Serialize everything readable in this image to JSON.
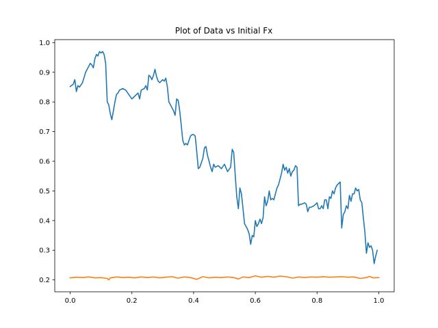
{
  "chart_data": {
    "type": "line",
    "title": "Plot of Data vs Initial Fx",
    "xlabel": "",
    "ylabel": "",
    "xlim": [
      -0.05,
      1.05
    ],
    "ylim": [
      0.16,
      1.01
    ],
    "xticks": [
      0.0,
      0.2,
      0.4,
      0.6,
      0.8,
      1.0
    ],
    "xtick_labels": [
      "0.0",
      "0.2",
      "0.4",
      "0.6",
      "0.8",
      "1.0"
    ],
    "yticks": [
      0.2,
      0.3,
      0.4,
      0.5,
      0.6,
      0.7,
      0.8,
      0.9,
      1.0
    ],
    "ytick_labels": [
      "0.2",
      "0.3",
      "0.4",
      "0.5",
      "0.6",
      "0.7",
      "0.8",
      "0.9",
      "1.0"
    ],
    "grid": false,
    "legend": "none",
    "series": [
      {
        "color": "#1f77b4",
        "points": [
          [
            0.0,
            0.852
          ],
          [
            0.01,
            0.86
          ],
          [
            0.015,
            0.875
          ],
          [
            0.02,
            0.835
          ],
          [
            0.025,
            0.855
          ],
          [
            0.03,
            0.85
          ],
          [
            0.04,
            0.865
          ],
          [
            0.05,
            0.9
          ],
          [
            0.06,
            0.92
          ],
          [
            0.065,
            0.93
          ],
          [
            0.07,
            0.925
          ],
          [
            0.075,
            0.915
          ],
          [
            0.08,
            0.945
          ],
          [
            0.085,
            0.96
          ],
          [
            0.09,
            0.955
          ],
          [
            0.095,
            0.97
          ],
          [
            0.1,
            0.965
          ],
          [
            0.105,
            0.97
          ],
          [
            0.11,
            0.96
          ],
          [
            0.115,
            0.93
          ],
          [
            0.12,
            0.8
          ],
          [
            0.125,
            0.79
          ],
          [
            0.13,
            0.76
          ],
          [
            0.135,
            0.74
          ],
          [
            0.14,
            0.77
          ],
          [
            0.145,
            0.8
          ],
          [
            0.15,
            0.825
          ],
          [
            0.155,
            0.83
          ],
          [
            0.16,
            0.84
          ],
          [
            0.17,
            0.845
          ],
          [
            0.18,
            0.84
          ],
          [
            0.19,
            0.825
          ],
          [
            0.2,
            0.81
          ],
          [
            0.21,
            0.82
          ],
          [
            0.22,
            0.83
          ],
          [
            0.225,
            0.81
          ],
          [
            0.23,
            0.84
          ],
          [
            0.24,
            0.845
          ],
          [
            0.245,
            0.855
          ],
          [
            0.25,
            0.84
          ],
          [
            0.255,
            0.89
          ],
          [
            0.26,
            0.885
          ],
          [
            0.265,
            0.875
          ],
          [
            0.27,
            0.89
          ],
          [
            0.275,
            0.91
          ],
          [
            0.28,
            0.885
          ],
          [
            0.285,
            0.87
          ],
          [
            0.29,
            0.865
          ],
          [
            0.3,
            0.875
          ],
          [
            0.305,
            0.87
          ],
          [
            0.31,
            0.88
          ],
          [
            0.315,
            0.85
          ],
          [
            0.32,
            0.8
          ],
          [
            0.325,
            0.79
          ],
          [
            0.33,
            0.78
          ],
          [
            0.335,
            0.77
          ],
          [
            0.34,
            0.755
          ],
          [
            0.345,
            0.81
          ],
          [
            0.35,
            0.805
          ],
          [
            0.355,
            0.77
          ],
          [
            0.36,
            0.72
          ],
          [
            0.365,
            0.67
          ],
          [
            0.37,
            0.655
          ],
          [
            0.375,
            0.66
          ],
          [
            0.38,
            0.655
          ],
          [
            0.385,
            0.67
          ],
          [
            0.39,
            0.685
          ],
          [
            0.395,
            0.69
          ],
          [
            0.4,
            0.69
          ],
          [
            0.405,
            0.685
          ],
          [
            0.41,
            0.635
          ],
          [
            0.415,
            0.575
          ],
          [
            0.42,
            0.58
          ],
          [
            0.425,
            0.595
          ],
          [
            0.43,
            0.61
          ],
          [
            0.435,
            0.645
          ],
          [
            0.44,
            0.65
          ],
          [
            0.445,
            0.62
          ],
          [
            0.45,
            0.6
          ],
          [
            0.455,
            0.58
          ],
          [
            0.46,
            0.565
          ],
          [
            0.465,
            0.59
          ],
          [
            0.47,
            0.58
          ],
          [
            0.48,
            0.585
          ],
          [
            0.49,
            0.575
          ],
          [
            0.5,
            0.59
          ],
          [
            0.51,
            0.565
          ],
          [
            0.52,
            0.58
          ],
          [
            0.525,
            0.64
          ],
          [
            0.53,
            0.63
          ],
          [
            0.535,
            0.55
          ],
          [
            0.54,
            0.48
          ],
          [
            0.545,
            0.44
          ],
          [
            0.55,
            0.51
          ],
          [
            0.555,
            0.49
          ],
          [
            0.56,
            0.44
          ],
          [
            0.565,
            0.39
          ],
          [
            0.57,
            0.38
          ],
          [
            0.575,
            0.37
          ],
          [
            0.58,
            0.355
          ],
          [
            0.585,
            0.32
          ],
          [
            0.59,
            0.35
          ],
          [
            0.595,
            0.345
          ],
          [
            0.6,
            0.4
          ],
          [
            0.605,
            0.38
          ],
          [
            0.61,
            0.39
          ],
          [
            0.615,
            0.405
          ],
          [
            0.62,
            0.39
          ],
          [
            0.625,
            0.41
          ],
          [
            0.63,
            0.48
          ],
          [
            0.635,
            0.45
          ],
          [
            0.64,
            0.465
          ],
          [
            0.645,
            0.5
          ],
          [
            0.65,
            0.47
          ],
          [
            0.655,
            0.475
          ],
          [
            0.66,
            0.47
          ],
          [
            0.665,
            0.49
          ],
          [
            0.67,
            0.51
          ],
          [
            0.675,
            0.52
          ],
          [
            0.68,
            0.54
          ],
          [
            0.685,
            0.56
          ],
          [
            0.69,
            0.59
          ],
          [
            0.695,
            0.57
          ],
          [
            0.7,
            0.58
          ],
          [
            0.705,
            0.56
          ],
          [
            0.71,
            0.575
          ],
          [
            0.715,
            0.55
          ],
          [
            0.72,
            0.565
          ],
          [
            0.725,
            0.57
          ],
          [
            0.73,
            0.585
          ],
          [
            0.735,
            0.58
          ],
          [
            0.74,
            0.45
          ],
          [
            0.745,
            0.455
          ],
          [
            0.75,
            0.455
          ],
          [
            0.76,
            0.46
          ],
          [
            0.765,
            0.455
          ],
          [
            0.77,
            0.43
          ],
          [
            0.775,
            0.445
          ],
          [
            0.78,
            0.445
          ],
          [
            0.79,
            0.45
          ],
          [
            0.8,
            0.46
          ],
          [
            0.805,
            0.44
          ],
          [
            0.81,
            0.44
          ],
          [
            0.815,
            0.45
          ],
          [
            0.82,
            0.44
          ],
          [
            0.825,
            0.47
          ],
          [
            0.83,
            0.47
          ],
          [
            0.835,
            0.44
          ],
          [
            0.84,
            0.48
          ],
          [
            0.845,
            0.475
          ],
          [
            0.85,
            0.5
          ],
          [
            0.855,
            0.49
          ],
          [
            0.86,
            0.51
          ],
          [
            0.865,
            0.52
          ],
          [
            0.87,
            0.525
          ],
          [
            0.875,
            0.53
          ],
          [
            0.88,
            0.375
          ],
          [
            0.885,
            0.42
          ],
          [
            0.89,
            0.43
          ],
          [
            0.895,
            0.45
          ],
          [
            0.9,
            0.44
          ],
          [
            0.905,
            0.485
          ],
          [
            0.91,
            0.465
          ],
          [
            0.915,
            0.49
          ],
          [
            0.92,
            0.49
          ],
          [
            0.925,
            0.51
          ],
          [
            0.93,
            0.5
          ],
          [
            0.935,
            0.505
          ],
          [
            0.94,
            0.47
          ],
          [
            0.945,
            0.46
          ],
          [
            0.95,
            0.41
          ],
          [
            0.955,
            0.36
          ],
          [
            0.96,
            0.29
          ],
          [
            0.965,
            0.325
          ],
          [
            0.97,
            0.31
          ],
          [
            0.975,
            0.315
          ],
          [
            0.98,
            0.3
          ],
          [
            0.985,
            0.255
          ],
          [
            0.99,
            0.28
          ],
          [
            0.995,
            0.3
          ]
        ]
      },
      {
        "color": "#ff7f0e",
        "points": [
          [
            0.0,
            0.207
          ],
          [
            0.02,
            0.209
          ],
          [
            0.04,
            0.208
          ],
          [
            0.06,
            0.21
          ],
          [
            0.08,
            0.207
          ],
          [
            0.1,
            0.208
          ],
          [
            0.12,
            0.205
          ],
          [
            0.125,
            0.2
          ],
          [
            0.13,
            0.207
          ],
          [
            0.15,
            0.21
          ],
          [
            0.17,
            0.208
          ],
          [
            0.19,
            0.209
          ],
          [
            0.21,
            0.207
          ],
          [
            0.23,
            0.21
          ],
          [
            0.25,
            0.208
          ],
          [
            0.27,
            0.21
          ],
          [
            0.29,
            0.207
          ],
          [
            0.31,
            0.209
          ],
          [
            0.33,
            0.211
          ],
          [
            0.35,
            0.206
          ],
          [
            0.37,
            0.21
          ],
          [
            0.39,
            0.208
          ],
          [
            0.41,
            0.202
          ],
          [
            0.43,
            0.211
          ],
          [
            0.45,
            0.207
          ],
          [
            0.47,
            0.209
          ],
          [
            0.49,
            0.208
          ],
          [
            0.51,
            0.21
          ],
          [
            0.53,
            0.208
          ],
          [
            0.545,
            0.203
          ],
          [
            0.56,
            0.21
          ],
          [
            0.58,
            0.208
          ],
          [
            0.6,
            0.214
          ],
          [
            0.62,
            0.209
          ],
          [
            0.64,
            0.212
          ],
          [
            0.66,
            0.209
          ],
          [
            0.68,
            0.213
          ],
          [
            0.7,
            0.211
          ],
          [
            0.72,
            0.206
          ],
          [
            0.74,
            0.21
          ],
          [
            0.76,
            0.208
          ],
          [
            0.78,
            0.21
          ],
          [
            0.8,
            0.209
          ],
          [
            0.82,
            0.211
          ],
          [
            0.84,
            0.209
          ],
          [
            0.86,
            0.21
          ],
          [
            0.88,
            0.211
          ],
          [
            0.9,
            0.209
          ],
          [
            0.92,
            0.21
          ],
          [
            0.94,
            0.205
          ],
          [
            0.96,
            0.208
          ],
          [
            0.97,
            0.212
          ],
          [
            0.98,
            0.207
          ],
          [
            1.0,
            0.208
          ]
        ]
      }
    ]
  }
}
